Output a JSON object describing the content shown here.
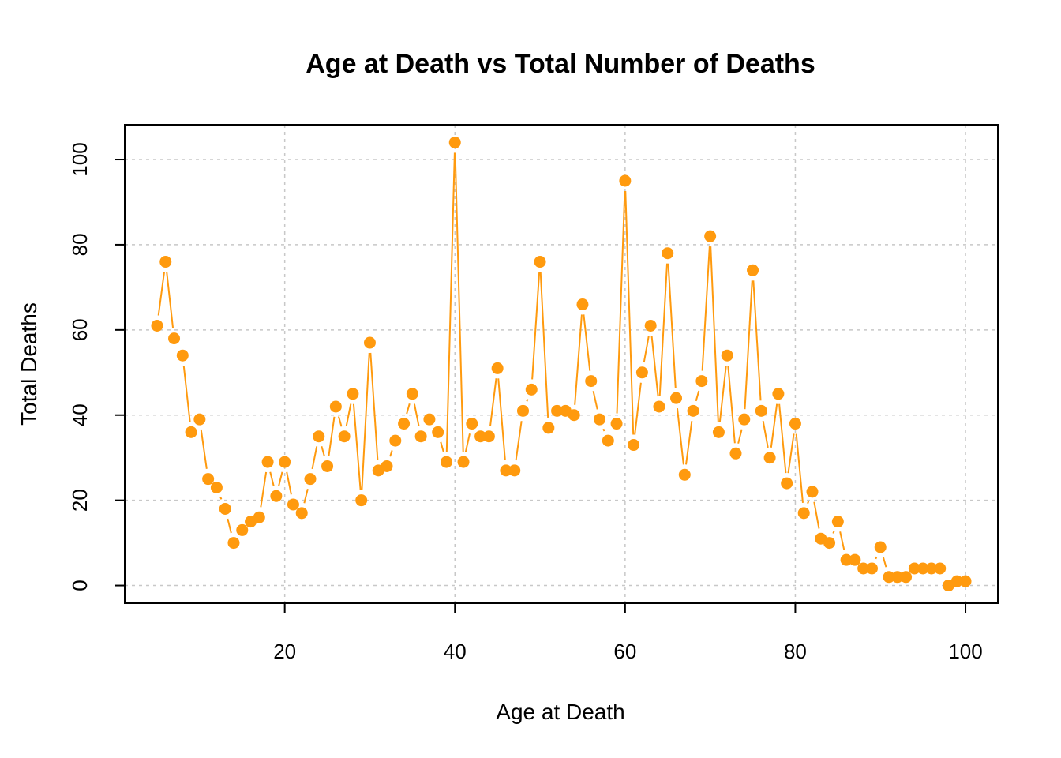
{
  "chart_data": {
    "type": "line",
    "title": "Age at Death vs Total Number of Deaths",
    "xlabel": "Age at Death",
    "ylabel": "Total Deaths",
    "xlim": [
      1.2,
      103.8
    ],
    "ylim": [
      -4.16,
      108.16
    ],
    "x_ticks": [
      20,
      40,
      60,
      80,
      100
    ],
    "y_ticks": [
      0,
      20,
      40,
      60,
      80,
      100
    ],
    "grid": true,
    "legend": "none",
    "line_style": "solid line with filled points",
    "color": "#FF9A0E",
    "grid_color": "#C8C8C8",
    "series": [
      {
        "x": [
          5,
          6,
          7,
          8,
          9,
          10,
          11,
          12,
          13,
          14,
          15,
          16,
          17,
          18,
          19,
          20,
          21,
          22,
          23,
          24,
          25,
          26,
          27,
          28,
          29,
          30,
          31,
          32,
          33,
          34,
          35,
          36,
          37,
          38,
          39,
          40,
          41,
          42,
          43,
          44,
          45,
          46,
          47,
          48,
          49,
          50,
          51,
          52,
          53,
          54,
          55,
          56,
          57,
          58,
          59,
          60,
          61,
          62,
          63,
          64,
          65,
          66,
          67,
          68,
          69,
          70,
          71,
          72,
          73,
          74,
          75,
          76,
          77,
          78,
          79,
          80,
          81,
          82,
          83,
          84,
          85,
          86,
          87,
          88,
          89,
          90,
          91,
          92,
          93,
          94,
          95,
          96,
          97,
          98,
          99,
          100
        ],
        "y": [
          61,
          76,
          58,
          54,
          36,
          39,
          25,
          23,
          18,
          10,
          13,
          15,
          16,
          29,
          21,
          29,
          19,
          17,
          25,
          35,
          28,
          42,
          35,
          45,
          20,
          57,
          27,
          28,
          34,
          38,
          45,
          35,
          39,
          36,
          29,
          104,
          29,
          38,
          35,
          35,
          51,
          27,
          27,
          41,
          46,
          76,
          37,
          41,
          41,
          40,
          66,
          48,
          39,
          34,
          38,
          95,
          33,
          50,
          61,
          42,
          78,
          44,
          26,
          41,
          48,
          82,
          36,
          54,
          31,
          39,
          74,
          41,
          30,
          45,
          24,
          38,
          17,
          22,
          11,
          10,
          15,
          6,
          6,
          4,
          4,
          9,
          2,
          2,
          2,
          4,
          4,
          4,
          4,
          0,
          1,
          1
        ]
      }
    ]
  }
}
